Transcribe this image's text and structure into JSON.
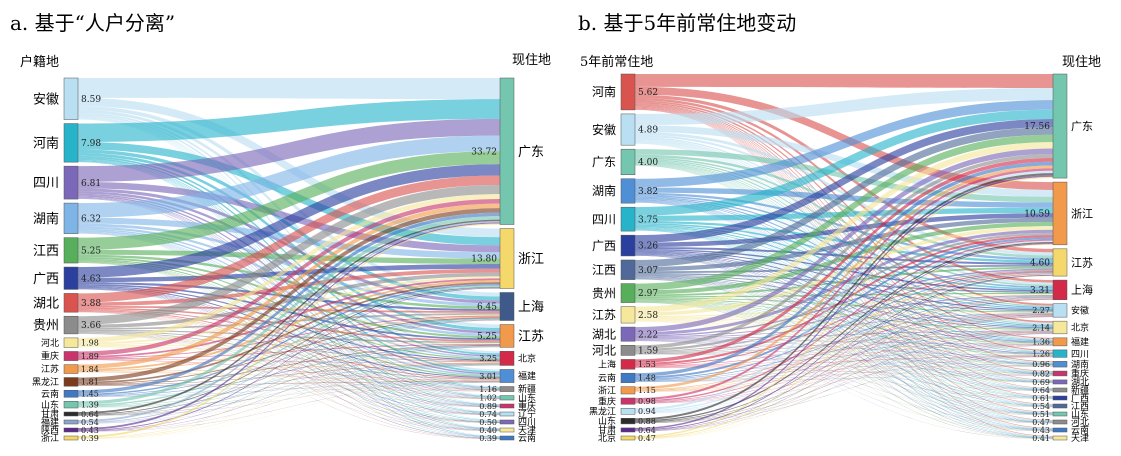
{
  "chart_data": [
    {
      "type": "sankey",
      "panel_label": "a. 基于“人户分离”",
      "left_axis_title": "户籍地",
      "right_axis_title": "现住地",
      "sources": [
        {
          "name": "安徽",
          "value": 8.59,
          "color": "#b9dff2"
        },
        {
          "name": "河南",
          "value": 7.98,
          "color": "#27b3c9"
        },
        {
          "name": "四川",
          "value": 6.81,
          "color": "#7b68b8"
        },
        {
          "name": "湖南",
          "value": 6.32,
          "color": "#7fb4e6"
        },
        {
          "name": "江西",
          "value": 5.25,
          "color": "#57ae5b"
        },
        {
          "name": "广西",
          "value": 4.63,
          "color": "#2b3f9e"
        },
        {
          "name": "湖北",
          "value": 3.88,
          "color": "#d9534f"
        },
        {
          "name": "贵州",
          "value": 3.66,
          "color": "#8c8c8c"
        },
        {
          "name": "河北",
          "value": 1.98,
          "color": "#f6e79b"
        },
        {
          "name": "重庆",
          "value": 1.89,
          "color": "#c9356b"
        },
        {
          "name": "江苏",
          "value": 1.84,
          "color": "#f19a4b"
        },
        {
          "name": "黑龙江",
          "value": 1.81,
          "color": "#7a3b1e"
        },
        {
          "name": "云南",
          "value": 1.45,
          "color": "#3f78c4"
        },
        {
          "name": "山东",
          "value": 1.39,
          "color": "#74c7ae"
        },
        {
          "name": "甘肃",
          "value": 0.64,
          "color": "#2c2c2c"
        },
        {
          "name": "福建",
          "value": 0.54,
          "color": "#8aa5c8"
        },
        {
          "name": "陕西",
          "value": 0.43,
          "color": "#5a2a8a"
        },
        {
          "name": "浙江",
          "value": 0.39,
          "color": "#f4d86b"
        }
      ],
      "targets": [
        {
          "name": "广东",
          "value": 33.72,
          "color": "#74c7ae"
        },
        {
          "name": "浙江",
          "value": 13.8,
          "color": "#f4d86b"
        },
        {
          "name": "上海",
          "value": 6.45,
          "color": "#3f5a8a"
        },
        {
          "name": "江苏",
          "value": 5.25,
          "color": "#f19a4b"
        },
        {
          "name": "北京",
          "value": 3.25,
          "color": "#d42a4a"
        },
        {
          "name": "福建",
          "value": 3.01,
          "color": "#4f8fd6"
        },
        {
          "name": "新疆",
          "value": 1.16,
          "color": "#8c8c8c"
        },
        {
          "name": "山东",
          "value": 1.02,
          "color": "#74c7ae"
        },
        {
          "name": "重庆",
          "value": 0.89,
          "color": "#c9356b"
        },
        {
          "name": "辽宁",
          "value": 0.74,
          "color": "#b9dff2"
        },
        {
          "name": "四川",
          "value": 0.5,
          "color": "#7b68b8"
        },
        {
          "name": "天津",
          "value": 0.4,
          "color": "#f6e79b"
        },
        {
          "name": "云南",
          "value": 0.39,
          "color": "#3f78c4"
        }
      ]
    },
    {
      "type": "sankey",
      "panel_label": "b. 基于5年前常住地变动",
      "left_axis_title": "5年前常住地",
      "right_axis_title": "现住地",
      "sources": [
        {
          "name": "河南",
          "value": 5.62,
          "color": "#d9534f"
        },
        {
          "name": "安徽",
          "value": 4.89,
          "color": "#b9dff2"
        },
        {
          "name": "广东",
          "value": 4.0,
          "color": "#74c7ae"
        },
        {
          "name": "湖南",
          "value": 3.82,
          "color": "#4f8fd6"
        },
        {
          "name": "四川",
          "value": 3.75,
          "color": "#27b3c9"
        },
        {
          "name": "广西",
          "value": 3.26,
          "color": "#2b3f9e"
        },
        {
          "name": "江西",
          "value": 3.07,
          "color": "#4f6a9a"
        },
        {
          "name": "贵州",
          "value": 2.97,
          "color": "#57ae5b"
        },
        {
          "name": "江苏",
          "value": 2.58,
          "color": "#f6e79b"
        },
        {
          "name": "湖北",
          "value": 2.22,
          "color": "#7b68b8"
        },
        {
          "name": "河北",
          "value": 1.59,
          "color": "#8c8c8c"
        },
        {
          "name": "上海",
          "value": 1.53,
          "color": "#d42a4a"
        },
        {
          "name": "云南",
          "value": 1.48,
          "color": "#3f78c4"
        },
        {
          "name": "浙江",
          "value": 1.15,
          "color": "#f19a4b"
        },
        {
          "name": "重庆",
          "value": 0.98,
          "color": "#c9356b"
        },
        {
          "name": "黑龙江",
          "value": 0.94,
          "color": "#b9dff2"
        },
        {
          "name": "山东",
          "value": 0.88,
          "color": "#2c2c2c"
        },
        {
          "name": "甘肃",
          "value": 0.64,
          "color": "#5a2a8a"
        },
        {
          "name": "北京",
          "value": 0.47,
          "color": "#f4d86b"
        }
      ],
      "targets": [
        {
          "name": "广东",
          "value": 17.56,
          "color": "#74c7ae"
        },
        {
          "name": "浙江",
          "value": 10.59,
          "color": "#f19a4b"
        },
        {
          "name": "江苏",
          "value": 4.6,
          "color": "#f4d86b"
        },
        {
          "name": "上海",
          "value": 3.31,
          "color": "#d42a4a"
        },
        {
          "name": "安徽",
          "value": 2.27,
          "color": "#b9dff2"
        },
        {
          "name": "北京",
          "value": 2.14,
          "color": "#f6e79b"
        },
        {
          "name": "福建",
          "value": 1.36,
          "color": "#f19a4b"
        },
        {
          "name": "四川",
          "value": 1.26,
          "color": "#27b3c9"
        },
        {
          "name": "湖南",
          "value": 0.96,
          "color": "#4f8fd6"
        },
        {
          "name": "重庆",
          "value": 0.82,
          "color": "#c9356b"
        },
        {
          "name": "湖北",
          "value": 0.69,
          "color": "#7b68b8"
        },
        {
          "name": "新疆",
          "value": 0.64,
          "color": "#8c8c8c"
        },
        {
          "name": "广西",
          "value": 0.61,
          "color": "#2b3f9e"
        },
        {
          "name": "江西",
          "value": 0.54,
          "color": "#4f6a9a"
        },
        {
          "name": "山东",
          "value": 0.51,
          "color": "#74c7ae"
        },
        {
          "name": "河北",
          "value": 0.47,
          "color": "#8c8c8c"
        },
        {
          "name": "云南",
          "value": 0.43,
          "color": "#3f78c4"
        },
        {
          "name": "天津",
          "value": 0.41,
          "color": "#f6e79b"
        }
      ]
    }
  ]
}
